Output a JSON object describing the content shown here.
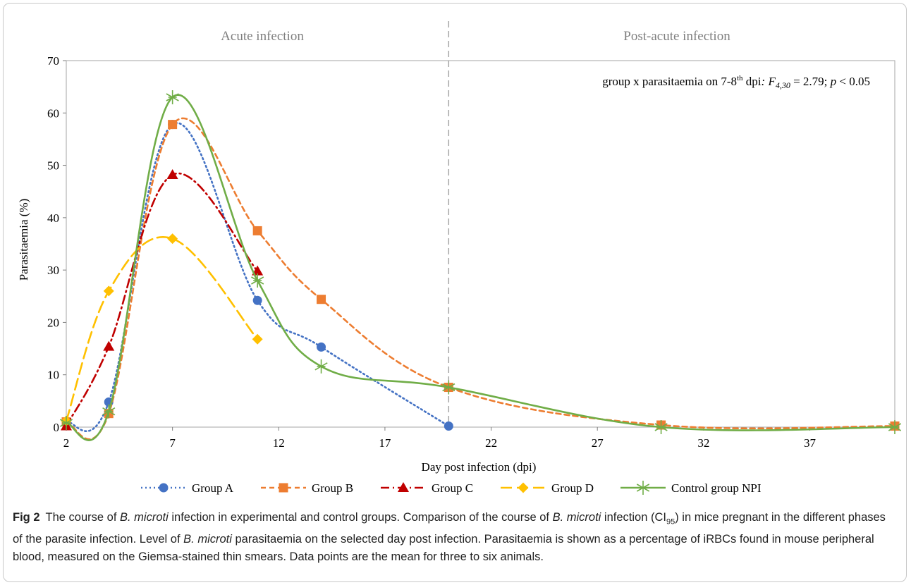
{
  "chart_data": {
    "type": "line",
    "xlabel": "Day post infection (dpi)",
    "ylabel": "Parasitaemia (%)",
    "xlim": [
      2,
      41
    ],
    "ylim": [
      0,
      70
    ],
    "x_ticks": [
      2,
      7,
      12,
      17,
      22,
      27,
      32,
      37
    ],
    "y_ticks": [
      0,
      10,
      20,
      30,
      40,
      50,
      60,
      70
    ],
    "phase_divider_x": 20,
    "phases": [
      "Acute infection",
      "Post-acute infection"
    ],
    "annotation": {
      "prefix": "group x parasitaemia on 7-8",
      "sup": "th",
      "mid": " dpi",
      "colon": ": ",
      "stat": "F",
      "stat_sub": "4,30",
      "stat_val": " = 2.79; ",
      "p": "p",
      "p_val": " < 0.05"
    },
    "legend_position": "bottom",
    "series": [
      {
        "name": "Group A",
        "color": "#4472c4",
        "marker": "circle",
        "dash": "2,4",
        "x": [
          2,
          4,
          7,
          11,
          14,
          20
        ],
        "y": [
          1.0,
          4.8,
          57.8,
          24.2,
          15.3,
          0.2
        ]
      },
      {
        "name": "Group B",
        "color": "#ed7d31",
        "marker": "square",
        "dash": "7,5",
        "x": [
          2,
          4,
          7,
          11,
          14,
          20,
          30,
          41
        ],
        "y": [
          1.0,
          2.6,
          57.8,
          37.5,
          24.4,
          7.6,
          0.4,
          0.2
        ]
      },
      {
        "name": "Group C",
        "color": "#c00000",
        "marker": "triangle",
        "dash": "12,5,2,5",
        "x": [
          2,
          4,
          7,
          11
        ],
        "y": [
          0.2,
          15.4,
          48.2,
          29.8
        ]
      },
      {
        "name": "Group D",
        "color": "#ffc000",
        "marker": "diamond",
        "dash": "16,7",
        "x": [
          2,
          4,
          7,
          11
        ],
        "y": [
          1.2,
          26.0,
          36.0,
          16.8
        ]
      },
      {
        "name": "Control group NPI",
        "color": "#70ad47",
        "marker": "star",
        "dash": "",
        "x": [
          2,
          4,
          7,
          11,
          14,
          20,
          30,
          41
        ],
        "y": [
          0.8,
          3.0,
          63.0,
          28.0,
          11.6,
          7.6,
          0.0,
          0.0
        ]
      }
    ]
  },
  "caption": {
    "label": "Fig 2",
    "t1": "The course of ",
    "b1": "B. microti",
    "t2": " infection in experimental and control groups. Comparison of the course of ",
    "b2": "B. microti",
    "t3": " infection (CI",
    "sub": "95",
    "t4": ") in mice pregnant in the different phases of the parasite infection. Level of ",
    "b3": "B. microti",
    "t5": " parasitaemia on the selected day post infection. Parasitaemia is shown as a percentage of iRBCs found in mouse peripheral blood, measured on the Giemsa-stained thin smears. Data points are the mean for three to six animals."
  }
}
